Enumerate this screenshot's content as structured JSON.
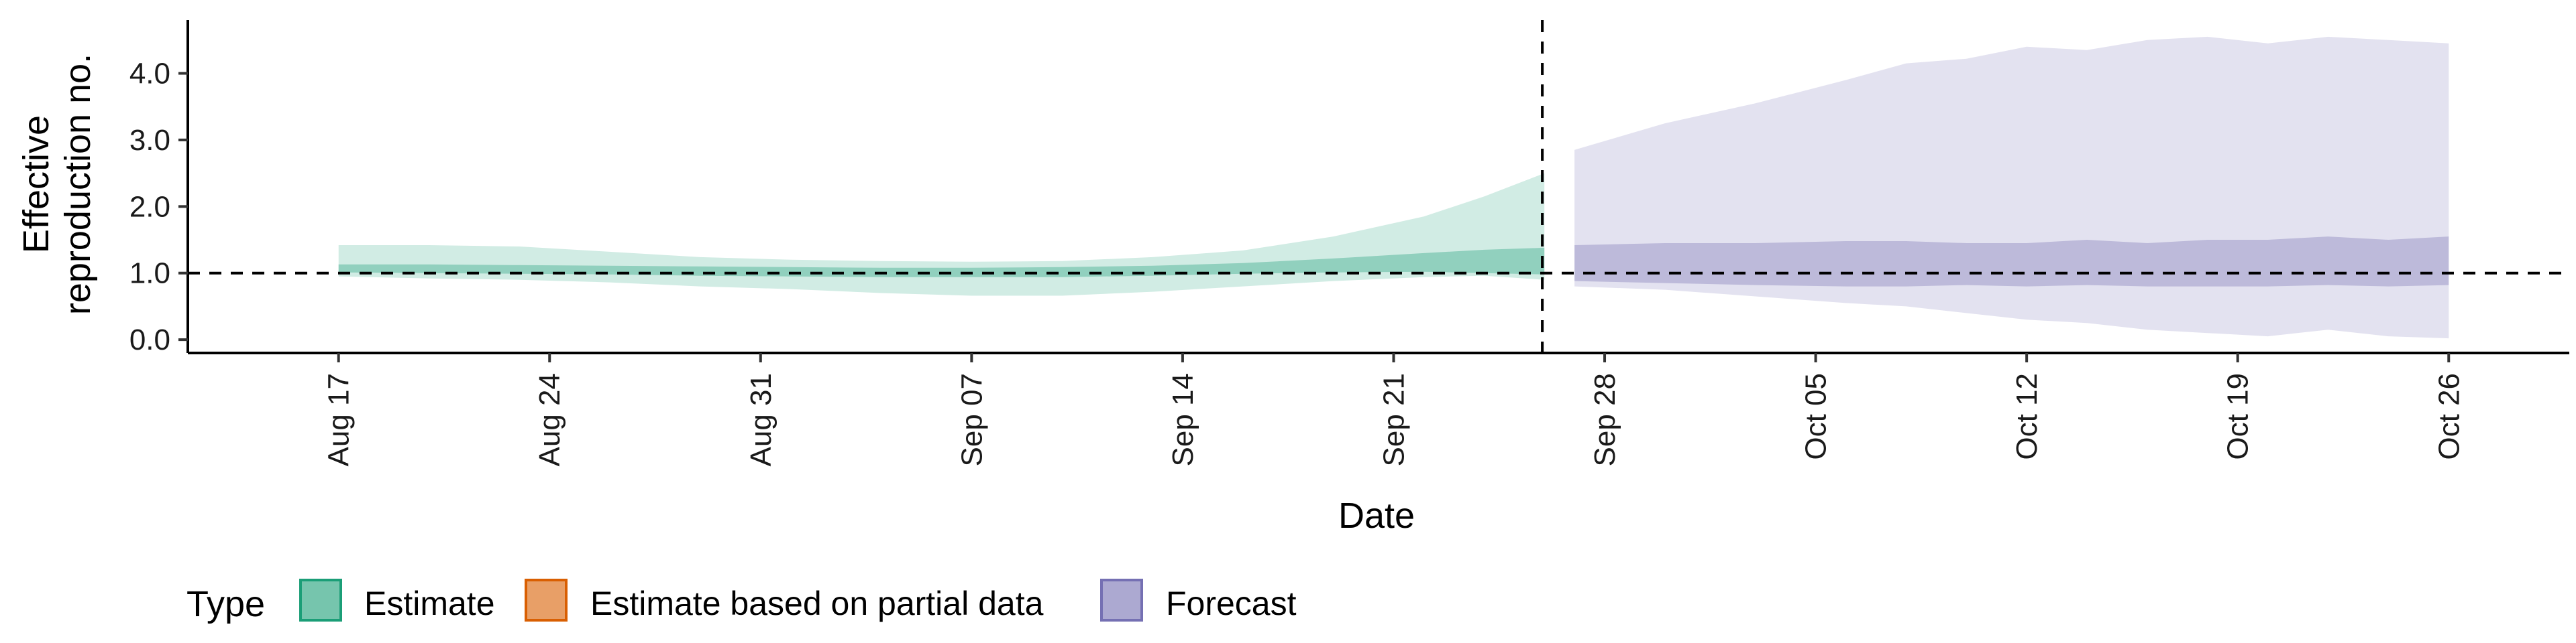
{
  "chart_data": {
    "type": "area",
    "xlabel": "Date",
    "ylabel_lines": [
      "Effective",
      "reproduction no."
    ],
    "ylim": [
      -0.2,
      4.8
    ],
    "y_ticks": [
      "0.0",
      "1.0",
      "2.0",
      "3.0",
      "4.0"
    ],
    "y_tick_values": [
      0,
      1,
      2,
      3,
      4
    ],
    "x_range": [
      "2020-08-12",
      "2020-10-30"
    ],
    "x_ticks": [
      {
        "date": "2020-08-17",
        "label": "Aug 17"
      },
      {
        "date": "2020-08-24",
        "label": "Aug 24"
      },
      {
        "date": "2020-08-31",
        "label": "Aug 31"
      },
      {
        "date": "2020-09-07",
        "label": "Sep 07"
      },
      {
        "date": "2020-09-14",
        "label": "Sep 14"
      },
      {
        "date": "2020-09-21",
        "label": "Sep 21"
      },
      {
        "date": "2020-09-28",
        "label": "Sep 28"
      },
      {
        "date": "2020-10-05",
        "label": "Oct 05"
      },
      {
        "date": "2020-10-12",
        "label": "Oct 12"
      },
      {
        "date": "2020-10-19",
        "label": "Oct 19"
      },
      {
        "date": "2020-10-26",
        "label": "Oct 26"
      }
    ],
    "reference_line_y": 1.0,
    "forecast_start_date": "2020-09-27",
    "series": [
      {
        "name": "Estimate",
        "color": "#1b9e77",
        "dates": [
          "2020-08-17",
          "2020-08-20",
          "2020-08-23",
          "2020-08-26",
          "2020-08-29",
          "2020-09-01",
          "2020-09-04",
          "2020-09-07",
          "2020-09-10",
          "2020-09-13",
          "2020-09-16",
          "2020-09-19",
          "2020-09-22",
          "2020-09-24",
          "2020-09-26"
        ],
        "outer_upper": [
          1.42,
          1.42,
          1.4,
          1.32,
          1.24,
          1.2,
          1.18,
          1.17,
          1.18,
          1.24,
          1.34,
          1.55,
          1.85,
          2.15,
          2.5
        ],
        "outer_lower": [
          0.95,
          0.92,
          0.9,
          0.86,
          0.8,
          0.76,
          0.7,
          0.66,
          0.66,
          0.72,
          0.8,
          0.88,
          0.94,
          0.96,
          0.9
        ],
        "inner_upper": [
          1.13,
          1.13,
          1.12,
          1.11,
          1.1,
          1.09,
          1.08,
          1.08,
          1.09,
          1.11,
          1.15,
          1.22,
          1.3,
          1.35,
          1.38
        ],
        "inner_lower": [
          1.01,
          1.0,
          0.99,
          0.98,
          0.96,
          0.95,
          0.94,
          0.94,
          0.94,
          0.96,
          0.99,
          1.01,
          1.02,
          1.0,
          0.98
        ]
      },
      {
        "name": "Forecast",
        "color": "#7570b3",
        "dates": [
          "2020-09-27",
          "2020-09-30",
          "2020-10-03",
          "2020-10-06",
          "2020-10-08",
          "2020-10-10",
          "2020-10-12",
          "2020-10-14",
          "2020-10-16",
          "2020-10-18",
          "2020-10-20",
          "2020-10-22",
          "2020-10-24",
          "2020-10-26"
        ],
        "outer_upper": [
          2.85,
          3.25,
          3.55,
          3.9,
          4.15,
          4.22,
          4.4,
          4.35,
          4.5,
          4.55,
          4.45,
          4.55,
          4.5,
          4.45
        ],
        "outer_lower": [
          0.8,
          0.75,
          0.65,
          0.55,
          0.5,
          0.4,
          0.3,
          0.25,
          0.15,
          0.1,
          0.05,
          0.15,
          0.05,
          0.02
        ],
        "inner_upper": [
          1.42,
          1.45,
          1.45,
          1.48,
          1.48,
          1.45,
          1.45,
          1.5,
          1.45,
          1.5,
          1.5,
          1.55,
          1.5,
          1.55
        ],
        "inner_lower": [
          0.88,
          0.85,
          0.82,
          0.8,
          0.8,
          0.82,
          0.8,
          0.82,
          0.8,
          0.8,
          0.8,
          0.82,
          0.8,
          0.82
        ]
      }
    ],
    "legend": {
      "title": "Type",
      "placement": "bottom-left",
      "items": [
        {
          "label": "Estimate",
          "color": "#1b9e77"
        },
        {
          "label": "Estimate based on partial data",
          "color": "#d95f02"
        },
        {
          "label": "Forecast",
          "color": "#7570b3"
        }
      ]
    }
  }
}
